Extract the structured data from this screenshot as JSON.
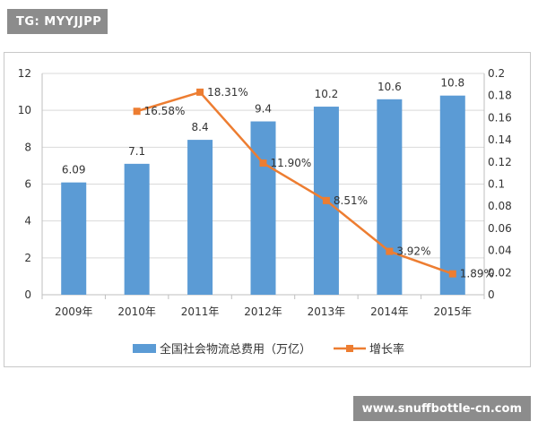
{
  "tag_text": "TG: MYYJJPP",
  "watermark_text": "www.snuffbottle-cn.com",
  "colors": {
    "bar": "#5b9bd5",
    "line": "#ed7d31",
    "grid": "#d9d9d9",
    "axis_text": "#333333"
  },
  "chart_data": {
    "type": "bar",
    "categories": [
      "2009年",
      "2010年",
      "2011年",
      "2012年",
      "2013年",
      "2014年",
      "2015年"
    ],
    "series": [
      {
        "name": "全国社会物流总费用（万亿）",
        "type": "bar",
        "axis": "left",
        "values": [
          6.09,
          7.1,
          8.4,
          9.4,
          10.2,
          10.6,
          10.8
        ],
        "labels": [
          "6.09",
          "7.1",
          "8.4",
          "9.4",
          "10.2",
          "10.6",
          "10.8"
        ]
      },
      {
        "name": "增长率",
        "type": "line",
        "axis": "right",
        "values": [
          null,
          0.1658,
          0.1831,
          0.119,
          0.0851,
          0.0392,
          0.0189
        ],
        "labels": [
          null,
          "16.58%",
          "18.31%",
          "11.90%",
          "8.51%",
          "3.92%",
          "1.89%"
        ]
      }
    ],
    "y_left": {
      "range": [
        0,
        12
      ],
      "ticks": [
        "0",
        "2",
        "4",
        "6",
        "8",
        "10",
        "12"
      ]
    },
    "y_right": {
      "range": [
        0,
        0.2
      ],
      "ticks": [
        "0",
        "0.02",
        "0.04",
        "0.06",
        "0.08",
        "0.1",
        "0.12",
        "0.14",
        "0.16",
        "0.18",
        "0.2"
      ]
    },
    "grid": true,
    "legend_position": "bottom"
  }
}
